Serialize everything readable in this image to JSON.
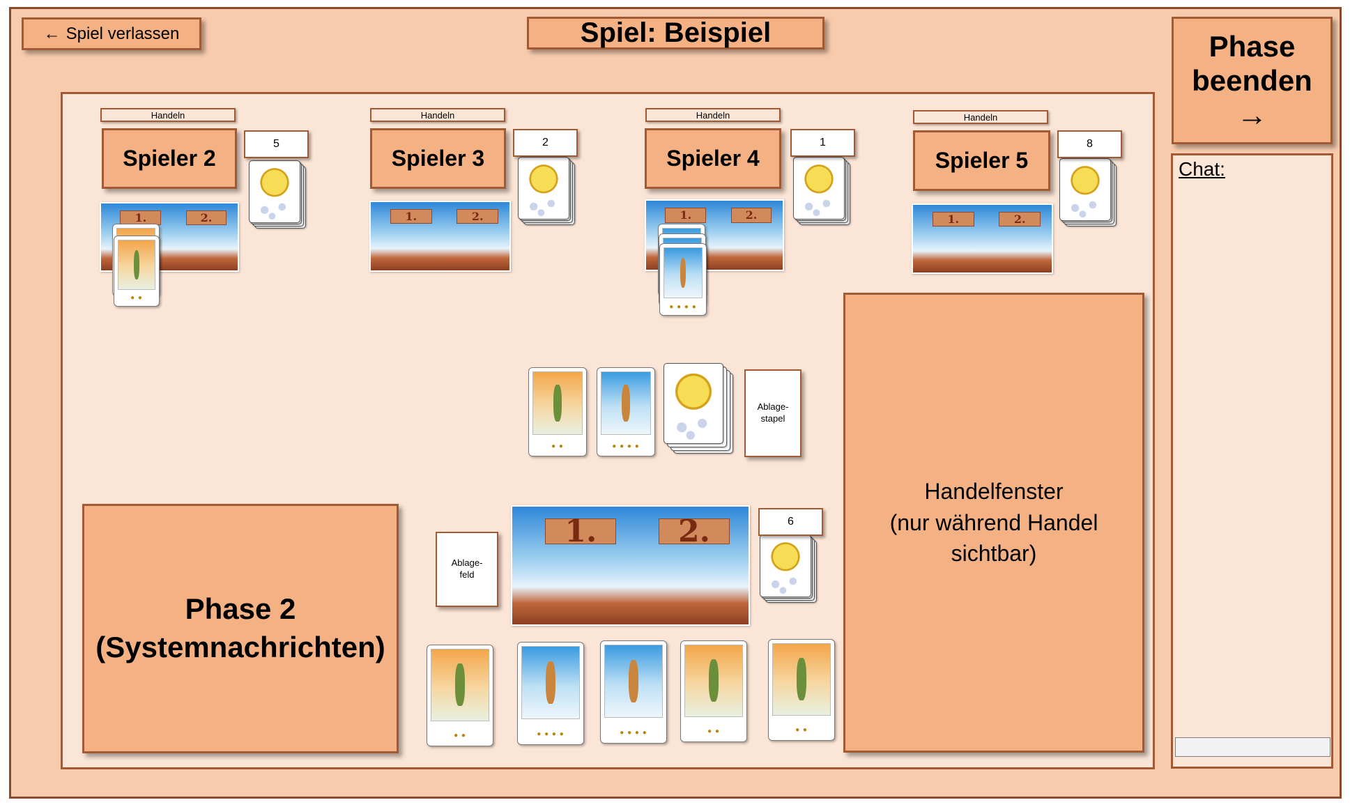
{
  "header": {
    "leave_button_label": "Spiel verlassen",
    "game_title": "Spiel: Beispiel",
    "end_phase_line1": "Phase",
    "end_phase_line2": "beenden",
    "end_phase_arrow": "→"
  },
  "chat": {
    "label": "Chat:",
    "input_value": ""
  },
  "opponents": [
    {
      "trade_label": "Handeln",
      "name": "Spieler 2",
      "coins": "5"
    },
    {
      "trade_label": "Handeln",
      "name": "Spieler 3",
      "coins": "2"
    },
    {
      "trade_label": "Handeln",
      "name": "Spieler 4",
      "coins": "1"
    },
    {
      "trade_label": "Handeln",
      "name": "Spieler 5",
      "coins": "8"
    }
  ],
  "field_labels": {
    "first": "1.",
    "second": "2."
  },
  "center": {
    "discard_pile_line1": "Ablage-",
    "discard_pile_line2": "stapel"
  },
  "own": {
    "discard_field_line1": "Ablage-",
    "discard_field_line2": "feld",
    "coins": "6"
  },
  "system_messages": {
    "line1": "Phase 2",
    "line2": "(Systemnachrichten)"
  },
  "trade_window": {
    "line1": "Handelfenster",
    "line2": "(nur während Handel",
    "line3": "sichtbar)"
  },
  "icons": {
    "back_arrow": "arrow-left-icon",
    "coin": "coin-icon"
  },
  "colors": {
    "background": "#f8cbad",
    "panel": "#f4b183",
    "board": "#fbe5d6",
    "border": "#a15a33"
  }
}
